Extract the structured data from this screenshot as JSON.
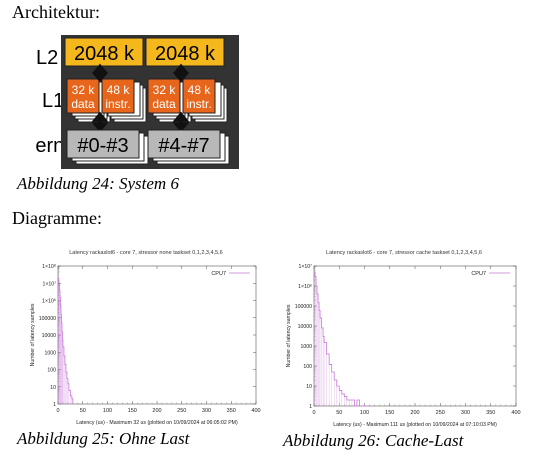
{
  "headings": {
    "architecture": "Architektur:",
    "diagrams": "Diagramme:"
  },
  "architecture": {
    "levels": [
      "L2",
      "L1",
      "Kern"
    ],
    "l2": [
      "2048 k",
      "2048 k"
    ],
    "l1_data": [
      "32 k",
      "data"
    ],
    "l1_instr": [
      "48 k",
      "instr."
    ],
    "cores": [
      "#0-#3",
      "#4-#7"
    ],
    "colors": {
      "frame": "#333333",
      "l2": "#f5b81c",
      "l1": "#e7661b",
      "core": "#b8b8b8"
    }
  },
  "captions": {
    "fig24": "Abbildung 24: System 6",
    "fig25": "Abbildung 25:  Ohne Last",
    "fig26": "Abbildung 26: Cache-Last"
  },
  "chart_data": [
    {
      "type": "line",
      "title": "Latency rackaslot6 - core 7,  stressor none taskset 0,1,2,3,4,5,6",
      "xlabel": "Latency (us) - Maximum 32 us (plotted on 10/09/2024 at 06:05:02 PM)",
      "ylabel": "Number of latency samples",
      "xlim": [
        0,
        400
      ],
      "xticks": [
        "0",
        "50",
        "100",
        "150",
        "200",
        "250",
        "300",
        "350",
        "400"
      ],
      "ylog": true,
      "ylim_exp": [
        0,
        8
      ],
      "yticks": [
        "1",
        "10",
        "100",
        "1000",
        "10000",
        "100000",
        "1×10⁶",
        "1×10⁷",
        "1×10⁸"
      ],
      "legend": "CPU7",
      "legend_position": "top-right",
      "color": "#c879d8",
      "series": [
        {
          "name": "CPU7",
          "x": [
            0,
            1,
            2,
            3,
            4,
            5,
            6,
            7,
            8,
            9,
            10,
            12,
            14,
            16,
            18,
            20,
            22,
            25,
            28,
            30,
            32
          ],
          "y": [
            20000000,
            15000000,
            9000000,
            4000000,
            1500000,
            500000,
            150000,
            50000,
            15000,
            5000,
            2000,
            600,
            200,
            70,
            30,
            15,
            6,
            3,
            2,
            1,
            1
          ]
        }
      ]
    },
    {
      "type": "line",
      "title": "Latency rackaslot6 - core 7,  stressor cache taskset 0,1,2,3,4,5,6",
      "xlabel": "Latency (us) - Maximum 111 us (plotted on 10/09/2024 at 07:10:03 PM)",
      "ylabel": "Number of latency samples",
      "xlim": [
        0,
        400
      ],
      "xticks": [
        "0",
        "50",
        "100",
        "150",
        "200",
        "250",
        "300",
        "350",
        "400"
      ],
      "ylog": true,
      "ylim_exp": [
        0,
        7
      ],
      "yticks": [
        "1",
        "10",
        "100",
        "1000",
        "10000",
        "100000",
        "1×10⁶",
        "1×10⁷"
      ],
      "legend": "CPU7",
      "legend_position": "top-right",
      "color": "#c879d8",
      "series": [
        {
          "name": "CPU7",
          "x": [
            0,
            2,
            4,
            6,
            8,
            10,
            12,
            15,
            18,
            20,
            25,
            30,
            35,
            40,
            45,
            50,
            55,
            60,
            65,
            70,
            75,
            80,
            85,
            90,
            95,
            100,
            105,
            111
          ],
          "y": [
            5000000,
            3000000,
            1000000,
            400000,
            150000,
            60000,
            25000,
            8000,
            3000,
            1500,
            400,
            120,
            50,
            20,
            10,
            6,
            4,
            3,
            2,
            2,
            2,
            1,
            2,
            1,
            1,
            1,
            1,
            1
          ]
        }
      ]
    }
  ]
}
